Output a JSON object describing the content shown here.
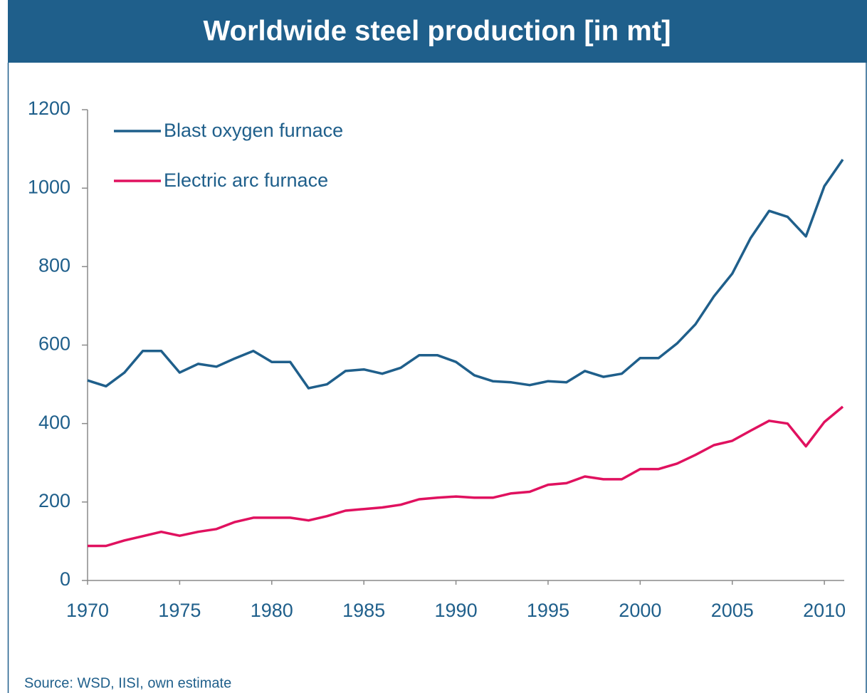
{
  "chart_data": {
    "type": "line",
    "title": "Worldwide steel production [in mt]",
    "source": "Source: WSD, IISI, own estimate",
    "x": [
      1970,
      1971,
      1972,
      1973,
      1974,
      1975,
      1976,
      1977,
      1978,
      1979,
      1980,
      1981,
      1982,
      1983,
      1984,
      1985,
      1986,
      1987,
      1988,
      1989,
      1990,
      1991,
      1992,
      1993,
      1994,
      1995,
      1996,
      1997,
      1998,
      1999,
      2000,
      2001,
      2002,
      2003,
      2004,
      2005,
      2006,
      2007,
      2008,
      2009,
      2010,
      2011
    ],
    "series": [
      {
        "name": "Blast oxygen furnace",
        "color": "#1f5f8b",
        "values": [
          510,
          495,
          530,
          585,
          585,
          530,
          552,
          545,
          566,
          585,
          557,
          557,
          490,
          500,
          534,
          538,
          527,
          542,
          574,
          574,
          557,
          523,
          508,
          505,
          498,
          508,
          505,
          534,
          519,
          527,
          567,
          567,
          604,
          653,
          724,
          782,
          873,
          942,
          927,
          877,
          1005,
          1073
        ]
      },
      {
        "name": "Electric arc furnace",
        "color": "#e0115f",
        "values": [
          88,
          88,
          102,
          113,
          124,
          114,
          124,
          131,
          149,
          160,
          160,
          160,
          153,
          164,
          178,
          182,
          186,
          193,
          207,
          211,
          214,
          211,
          211,
          222,
          226,
          244,
          248,
          265,
          258,
          258,
          284,
          284,
          298,
          320,
          345,
          356,
          382,
          407,
          400,
          342,
          404,
          443
        ]
      }
    ],
    "xlim": [
      1970,
      2011
    ],
    "xticks": [
      1970,
      1975,
      1980,
      1985,
      1990,
      1995,
      2000,
      2005,
      2010
    ],
    "ylim": [
      0,
      1200
    ],
    "yticks": [
      0,
      200,
      400,
      600,
      800,
      1000,
      1200
    ],
    "grid": false,
    "legend": "upper left"
  }
}
